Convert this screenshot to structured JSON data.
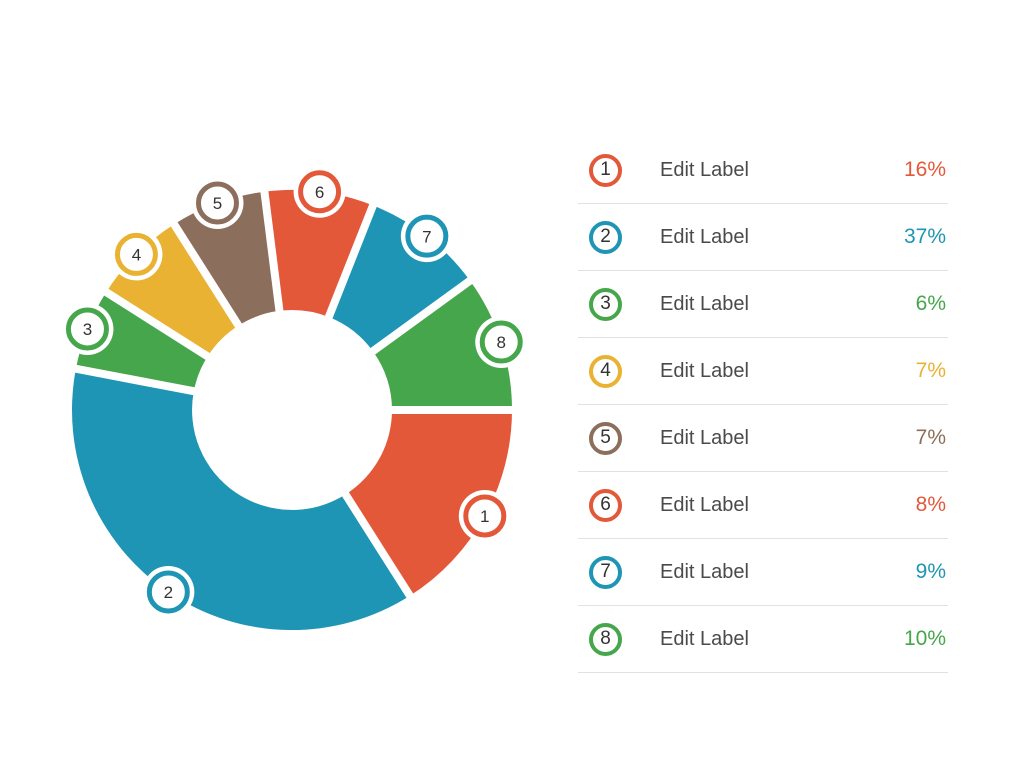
{
  "page": {
    "background": "#ffffff"
  },
  "chart_data": {
    "type": "pie",
    "subtype": "donut",
    "title": "",
    "unit": "%",
    "total": 100,
    "center": [
      292,
      410
    ],
    "inner_radius": 100,
    "outer_radius": 220,
    "start_angle_deg": 90,
    "clockwise": true,
    "gap_stroke_px": 8,
    "badge": {
      "halo_radius": 26,
      "ring_radius": 19,
      "ring_width": 5,
      "number_color": "#333333"
    },
    "segments": [
      {
        "id": "1",
        "label": "Edit Label",
        "value": 16,
        "display": "16%",
        "color": "#e4583a"
      },
      {
        "id": "2",
        "label": "Edit Label",
        "value": 37,
        "display": "37%",
        "color": "#1e95b4"
      },
      {
        "id": "3",
        "label": "Edit Label",
        "value": 6,
        "display": "6%",
        "color": "#46a64b"
      },
      {
        "id": "4",
        "label": "Edit Label",
        "value": 7,
        "display": "7%",
        "color": "#eab232"
      },
      {
        "id": "5",
        "label": "Edit Label",
        "value": 7,
        "display": "7%",
        "color": "#8c6e5c"
      },
      {
        "id": "6",
        "label": "Edit Label",
        "value": 8,
        "display": "8%",
        "color": "#e4583a"
      },
      {
        "id": "7",
        "label": "Edit Label",
        "value": 9,
        "display": "9%",
        "color": "#1e95b4"
      },
      {
        "id": "8",
        "label": "Edit Label",
        "value": 10,
        "display": "10%",
        "color": "#46a64b"
      }
    ],
    "legend_position": "right",
    "legend_divider_color": "#e1e1e1",
    "label_text_color": "#4a4a4a"
  }
}
